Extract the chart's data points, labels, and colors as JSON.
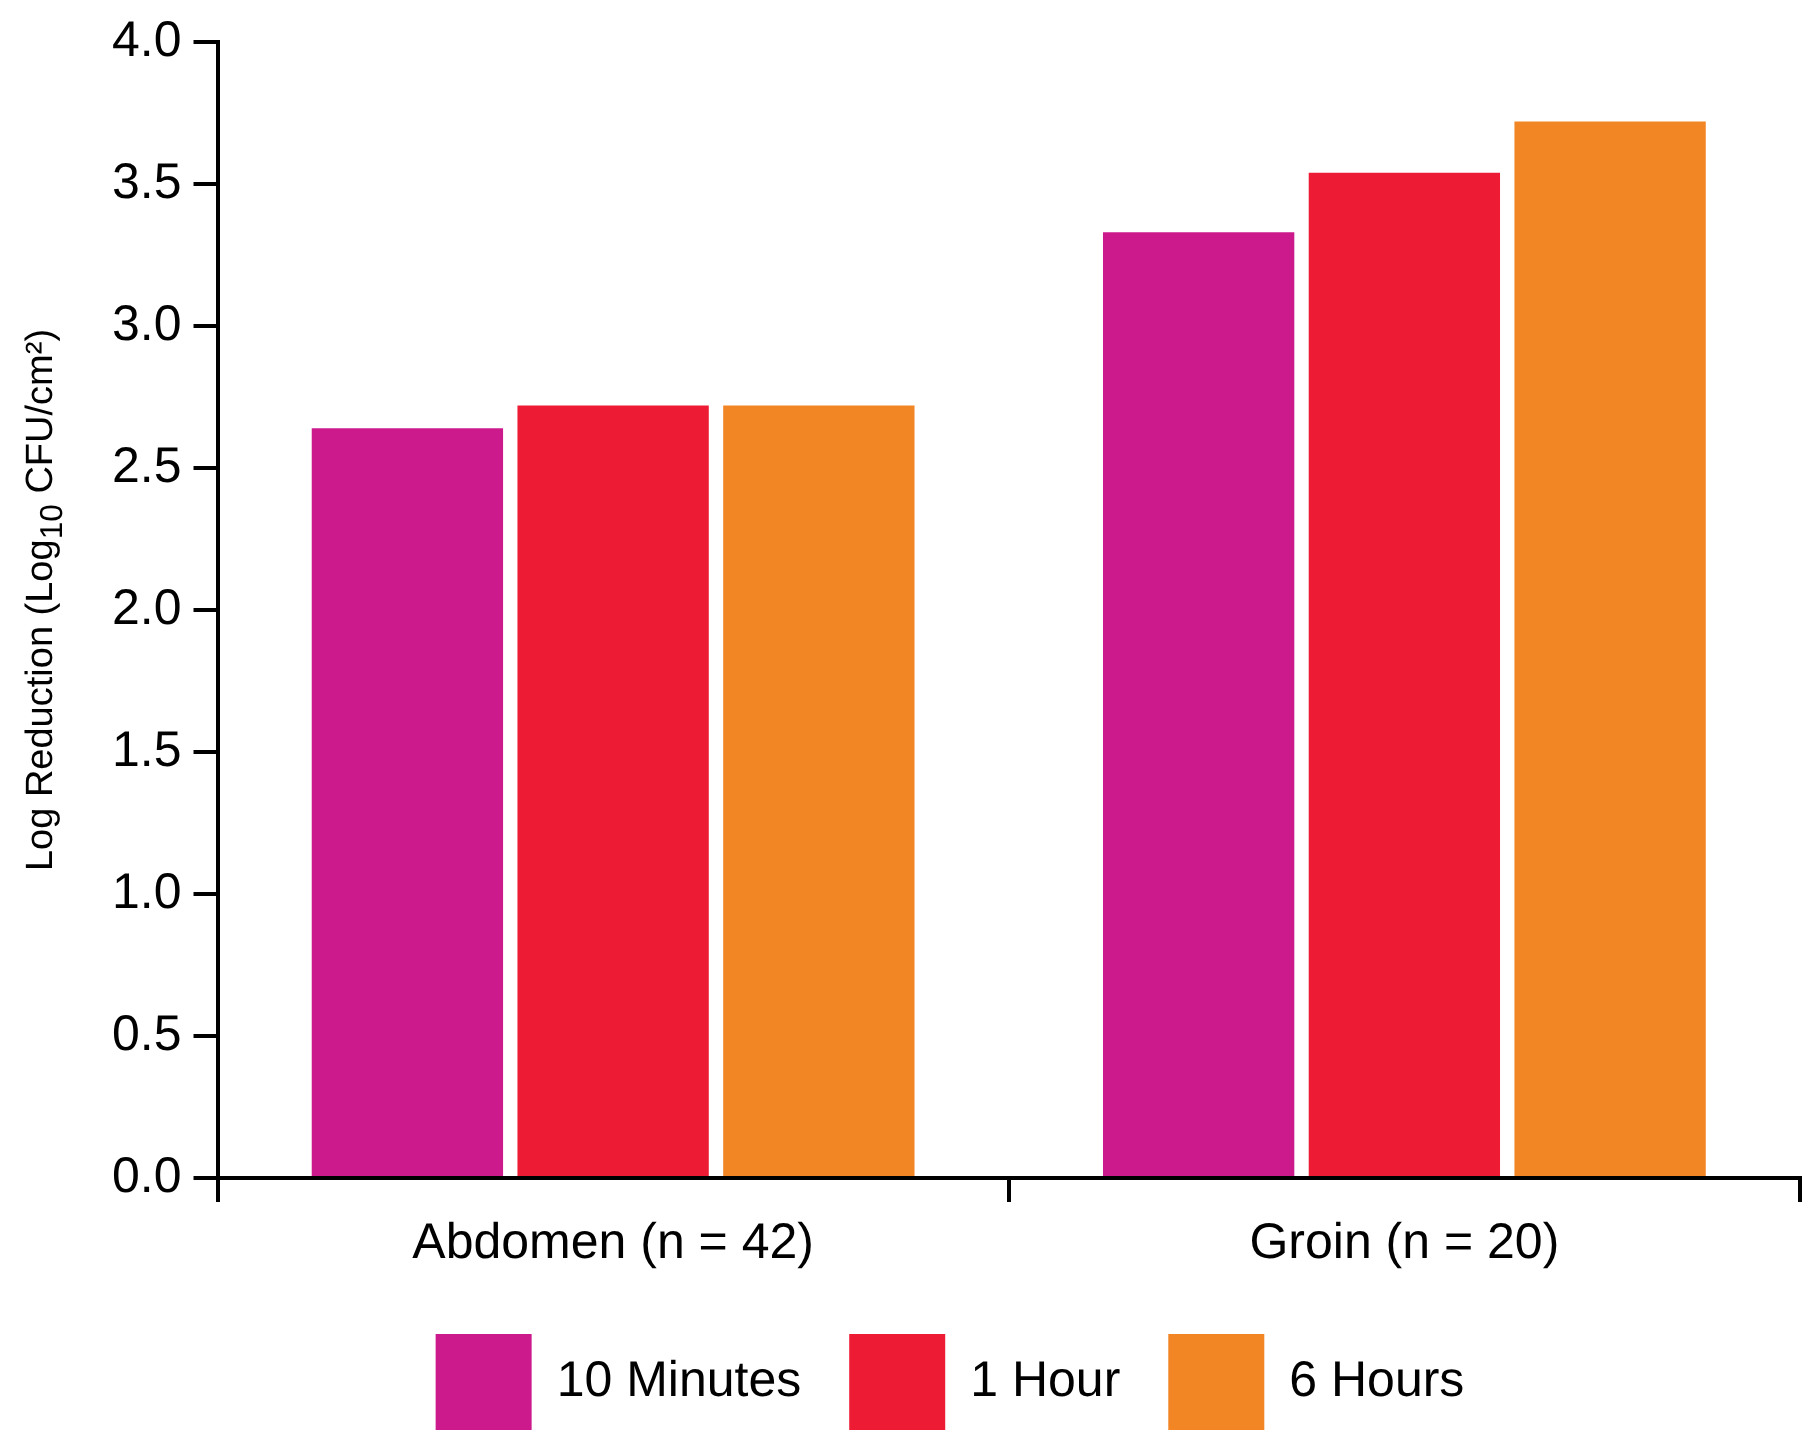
{
  "chart_data": {
    "type": "bar",
    "ylabel": "Log Reduction (Log$_{10}$ CFU/cm²)",
    "categories": [
      "Abdomen (n = 42)",
      "Groin (n = 20)"
    ],
    "series": [
      {
        "name": "10 Minutes",
        "color": "#cc1a8c",
        "values": [
          2.64,
          3.33
        ]
      },
      {
        "name": "1 Hour",
        "color": "#ed1c34",
        "values": [
          2.72,
          3.54
        ]
      },
      {
        "name": "6 Hours",
        "color": "#f28524",
        "values": [
          2.72,
          3.72
        ]
      }
    ],
    "ylim": [
      0,
      4
    ],
    "yticks": [
      {
        "value": 0,
        "label": "0.0"
      },
      {
        "value": 0.5,
        "label": "0.5"
      },
      {
        "value": 1,
        "label": "1.0"
      },
      {
        "value": 1.5,
        "label": "1.5"
      },
      {
        "value": 2,
        "label": "2.0"
      },
      {
        "value": 2.5,
        "label": "2.5"
      },
      {
        "value": 3,
        "label": "3.0"
      },
      {
        "value": 3.5,
        "label": "3.5"
      },
      {
        "value": 4,
        "label": "4.0"
      }
    ],
    "grid": false,
    "legend": "bottom"
  }
}
